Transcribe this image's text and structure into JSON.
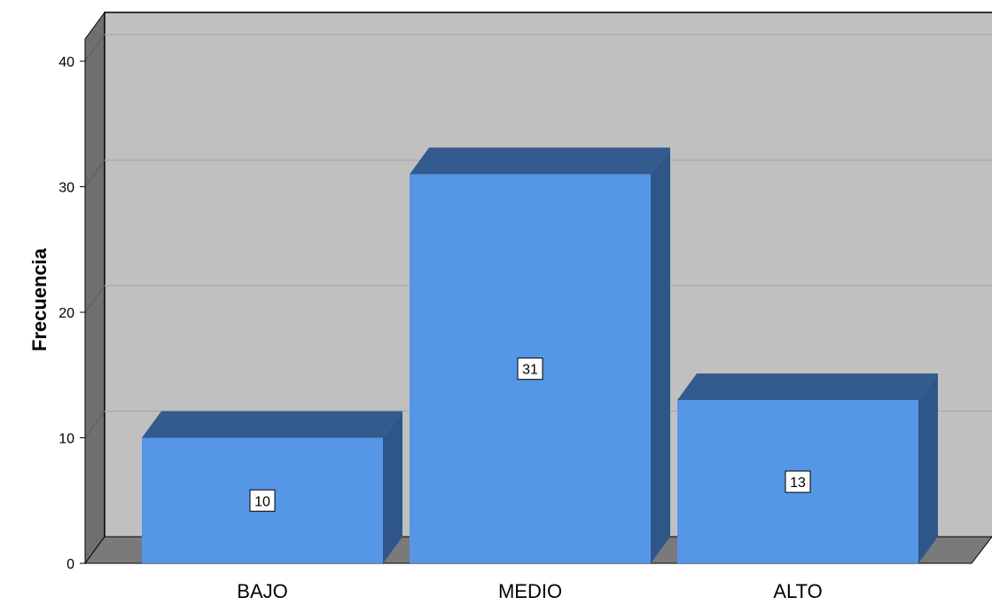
{
  "chart_data": {
    "type": "bar",
    "categories": [
      "BAJO",
      "MEDIO",
      "ALTO"
    ],
    "values": [
      10,
      31,
      13
    ],
    "ylabel": "Frecuencia",
    "xlabel": "",
    "title": "",
    "ylim": [
      0,
      40
    ],
    "yticks": [
      0,
      10,
      20,
      30,
      40
    ],
    "grid": true,
    "style": "3d",
    "colors": {
      "bar_front": "#5596e6",
      "bar_top": "#345b8e",
      "bar_side": "#2f5688",
      "back_wall": "#c0c0c0",
      "side_wall": "#6f6f6f",
      "floor": "#7a7a7a",
      "gridline": "#a8a8a8"
    }
  }
}
